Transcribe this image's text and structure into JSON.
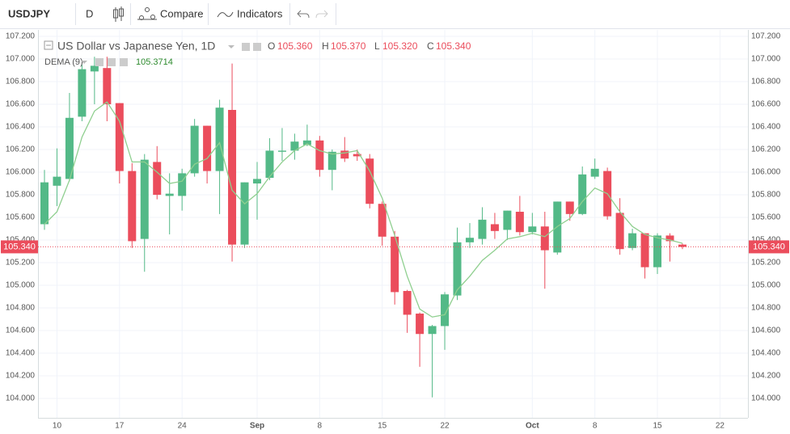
{
  "toolbar": {
    "symbol": "USDJPY",
    "interval": "D",
    "compare": "Compare",
    "indicators": "Indicators"
  },
  "chart_data": {
    "type": "candlestick",
    "title": "US Dollar vs Japanese Yen, 1D",
    "ohlc_legend": {
      "open_label": "O",
      "open": "105.360",
      "high_label": "H",
      "high": "105.370",
      "low_label": "L",
      "low": "105.320",
      "close_label": "C",
      "close": "105.340"
    },
    "last_price": "105.340",
    "categories": [
      null,
      "10",
      null,
      null,
      null,
      null,
      "17",
      null,
      null,
      null,
      null,
      "24",
      null,
      null,
      null,
      null,
      null,
      "Sep",
      null,
      null,
      null,
      null,
      "8",
      null,
      null,
      null,
      null,
      "15",
      null,
      null,
      null,
      null,
      "22",
      null,
      null,
      null,
      null,
      null,
      null,
      "Oct",
      null,
      null,
      null,
      null,
      "8",
      null,
      null,
      null,
      null,
      "15",
      null,
      null,
      null,
      null,
      "22"
    ],
    "open": [
      105.54,
      105.88,
      105.94,
      106.49,
      106.89,
      106.92,
      106.61,
      106.01,
      105.41,
      106.09,
      105.79,
      105.79,
      105.99,
      106.41,
      106.01,
      106.55,
      105.36,
      105.9,
      105.95,
      106.18,
      106.19,
      106.24,
      106.28,
      106.02,
      106.19,
      106.16,
      106.12,
      105.72,
      105.43,
      104.95,
      104.75,
      104.57,
      104.64,
      104.91,
      105.38,
      105.41,
      105.54,
      105.49,
      105.65,
      105.47,
      105.52,
      105.29,
      105.74,
      105.63,
      105.96,
      106.01,
      105.64,
      105.33,
      105.46,
      105.16,
      105.44,
      105.36,
      null,
      null,
      null
    ],
    "high": [
      106.02,
      106.21,
      106.7,
      106.95,
      107.02,
      107.02,
      106.61,
      106.08,
      106.16,
      106.23,
      105.99,
      106.03,
      106.47,
      106.41,
      106.64,
      106.96,
      105.91,
      106.09,
      106.3,
      106.39,
      106.34,
      106.42,
      106.32,
      106.2,
      106.31,
      106.2,
      106.16,
      105.74,
      105.48,
      104.96,
      104.76,
      104.65,
      104.94,
      105.51,
      105.55,
      105.69,
      105.64,
      105.66,
      105.79,
      105.64,
      105.65,
      105.74,
      105.74,
      106.05,
      106.12,
      106.04,
      105.77,
      105.5,
      105.46,
      105.46,
      105.46,
      105.37,
      null,
      null,
      null
    ],
    "low": [
      105.49,
      105.7,
      105.92,
      106.45,
      106.6,
      106.45,
      105.9,
      105.33,
      105.12,
      105.76,
      105.45,
      105.66,
      105.96,
      105.9,
      105.63,
      105.21,
      105.33,
      105.58,
      105.93,
      106.1,
      106.11,
      106.23,
      105.96,
      105.84,
      106.09,
      106.1,
      105.68,
      105.35,
      104.83,
      104.58,
      104.28,
      104.01,
      104.43,
      104.87,
      105.33,
      105.36,
      105.41,
      105.4,
      105.44,
      105.45,
      104.97,
      105.27,
      105.57,
      105.62,
      105.94,
      105.58,
      105.27,
      105.31,
      105.06,
      105.1,
      105.21,
      105.32,
      null,
      null,
      null
    ],
    "close": [
      105.91,
      105.96,
      106.48,
      106.91,
      106.94,
      106.6,
      106.01,
      105.39,
      106.11,
      105.8,
      105.81,
      105.99,
      106.41,
      106.01,
      106.57,
      105.36,
      105.91,
      105.94,
      106.19,
      106.19,
      106.27,
      106.28,
      106.02,
      106.18,
      106.12,
      106.14,
      105.72,
      105.43,
      104.94,
      104.74,
      104.57,
      104.64,
      104.92,
      105.38,
      105.42,
      105.58,
      105.48,
      105.66,
      105.47,
      105.52,
      105.31,
      105.74,
      105.63,
      105.98,
      106.03,
      105.61,
      105.32,
      105.46,
      105.16,
      105.44,
      105.39,
      105.34,
      null,
      null,
      null
    ],
    "up_color": "#53b987",
    "down_color": "#eb4d5c",
    "series": [
      {
        "name": "DEMA (9)",
        "color": "#8fcf8f",
        "value_color": "#2e8b2e",
        "values": [
          105.54,
          105.65,
          105.93,
          106.31,
          106.54,
          106.62,
          106.45,
          106.09,
          106.09,
          106.0,
          105.9,
          105.92,
          106.07,
          106.12,
          106.26,
          105.84,
          105.72,
          105.81,
          105.96,
          106.09,
          106.19,
          106.25,
          106.19,
          106.16,
          106.17,
          106.19,
          106.01,
          105.77,
          105.44,
          105.08,
          104.79,
          104.72,
          104.74,
          104.96,
          105.08,
          105.22,
          105.31,
          105.41,
          105.43,
          105.46,
          105.43,
          105.52,
          105.59,
          105.74,
          105.86,
          105.81,
          105.65,
          105.52,
          105.45,
          105.42,
          105.4,
          105.3714,
          null,
          null,
          null
        ]
      }
    ],
    "ylim": [
      103.829,
      107.257
    ],
    "yticks": [
      {
        "value": 104,
        "label": "104.000"
      },
      {
        "value": 104.2,
        "label": "104.200"
      },
      {
        "value": 104.4,
        "label": "104.400"
      },
      {
        "value": 104.6,
        "label": "104.600"
      },
      {
        "value": 104.8,
        "label": "104.800"
      },
      {
        "value": 105,
        "label": "105.000"
      },
      {
        "value": 105.2,
        "label": "105.200"
      },
      {
        "value": 105.4,
        "label": "105.400"
      },
      {
        "value": 105.6,
        "label": "105.600"
      },
      {
        "value": 105.8,
        "label": "105.800"
      },
      {
        "value": 106,
        "label": "106.000"
      },
      {
        "value": 106.2,
        "label": "106.200"
      },
      {
        "value": 106.4,
        "label": "106.400"
      },
      {
        "value": 106.6,
        "label": "106.600"
      },
      {
        "value": 106.8,
        "label": "106.800"
      },
      {
        "value": 107,
        "label": "107.000"
      },
      {
        "value": 107.2,
        "label": "107.200"
      }
    ],
    "grid": true
  }
}
